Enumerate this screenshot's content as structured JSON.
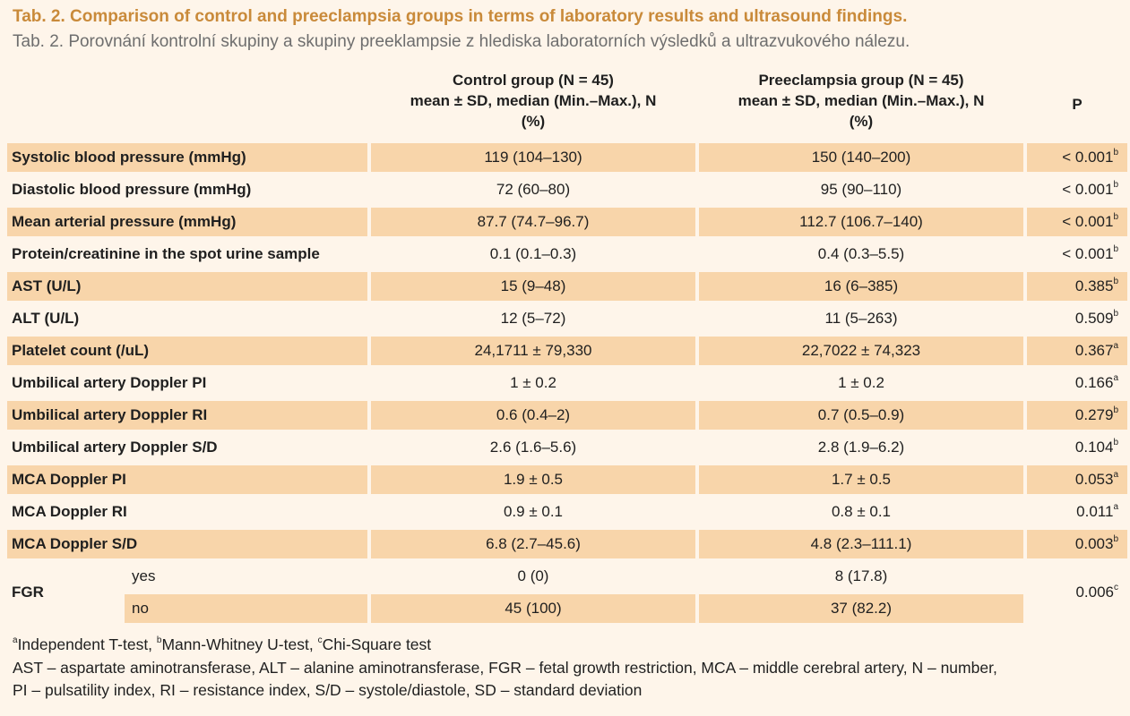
{
  "title": "Tab. 2. Comparison of control and preeclampsia groups in terms of laboratory results and ultrasound findings.",
  "subtitle": "Tab. 2. Porovnání kontrolní skupiny a skupiny preeklampsie z hlediska laboratorních výsledků a ultrazvukového nálezu.",
  "header": {
    "control_line1": "Control group (N = 45)",
    "control_line2": "mean ± SD, median (Min.–Max.), N",
    "control_line3": "(%)",
    "pre_line1": "Preeclampsia group (N = 45)",
    "pre_line2": "mean ± SD, median (Min.–Max.), N",
    "pre_line3": "(%)",
    "p": "P"
  },
  "rows": [
    {
      "label": "Systolic blood pressure (mmHg)",
      "control": "119 (104–130)",
      "pre": "150 (140–200)",
      "p": "< 0.001",
      "sup": "b"
    },
    {
      "label": "Diastolic blood pressure (mmHg)",
      "control": "72 (60–80)",
      "pre": "95 (90–110)",
      "p": "< 0.001",
      "sup": "b"
    },
    {
      "label": "Mean arterial pressure (mmHg)",
      "control": "87.7 (74.7–96.7)",
      "pre": "112.7 (106.7–140)",
      "p": "< 0.001",
      "sup": "b"
    },
    {
      "label": "Protein/creatinine in the spot urine sample",
      "control": "0.1 (0.1–0.3)",
      "pre": "0.4 (0.3–5.5)",
      "p": "< 0.001",
      "sup": "b"
    },
    {
      "label": "AST (U/L)",
      "control": "15 (9–48)",
      "pre": "16 (6–385)",
      "p": "0.385",
      "sup": "b"
    },
    {
      "label": "ALT (U/L)",
      "control": "12 (5–72)",
      "pre": "11 (5–263)",
      "p": "0.509",
      "sup": "b"
    },
    {
      "label": "Platelet count (/uL)",
      "control": "24,1711 ± 79,330",
      "pre": "22,7022 ± 74,323",
      "p": "0.367",
      "sup": "a"
    },
    {
      "label": "Umbilical artery Doppler PI",
      "control": "1 ± 0.2",
      "pre": "1 ± 0.2",
      "p": "0.166",
      "sup": "a"
    },
    {
      "label": "Umbilical artery Doppler RI",
      "control": "0.6 (0.4–2)",
      "pre": "0.7 (0.5–0.9)",
      "p": "0.279",
      "sup": "b"
    },
    {
      "label": "Umbilical artery Doppler S/D",
      "control": "2.6 (1.6–5.6)",
      "pre": "2.8 (1.9–6.2)",
      "p": "0.104",
      "sup": "b"
    },
    {
      "label": "MCA Doppler PI",
      "control": "1.9 ± 0.5",
      "pre": "1.7 ± 0.5",
      "p": "0.053",
      "sup": "a"
    },
    {
      "label": "MCA Doppler RI",
      "control": "0.9 ± 0.1",
      "pre": "0.8 ± 0.1",
      "p": "0.011",
      "sup": "a"
    },
    {
      "label": "MCA Doppler S/D",
      "control": "6.8 (2.7–45.6)",
      "pre": "4.8 (2.3–111.1)",
      "p": "0.003",
      "sup": "b"
    }
  ],
  "fgr": {
    "label": "FGR",
    "yes_label": "yes",
    "yes_control": "0 (0)",
    "yes_pre": "8 (17.8)",
    "no_label": "no",
    "no_control": "45 (100)",
    "no_pre": "37 (82.2)",
    "p": "0.006",
    "sup": "c"
  },
  "footer": {
    "sup_a": "a",
    "note_a": "Independent T-test, ",
    "sup_b": "b",
    "note_b": "Mann-Whitney U-test, ",
    "sup_c": "c",
    "note_c": "Chi-Square test",
    "line2": "AST – aspartate aminotransferase, ALT – alanine aminotransferase, FGR – fetal growth restriction, MCA – middle cerebral artery, N – number,",
    "line3": "PI – pulsatility index, RI – resistance index, S/D – systole/diastole, SD – standard deviation"
  },
  "colors": {
    "background": "#fef5ea",
    "row_shade": "#f8d5aa",
    "title": "#c98a3a",
    "subtitle": "#6e6e6e"
  }
}
